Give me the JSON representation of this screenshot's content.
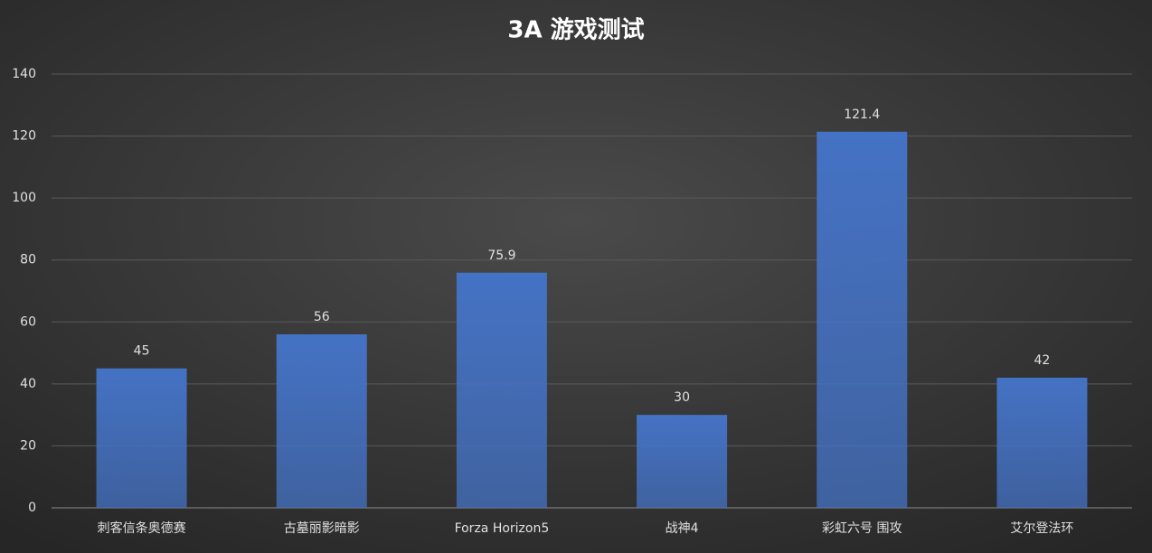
{
  "chart_data": {
    "type": "bar",
    "title": "3A 游戏测试",
    "categories": [
      "刺客信条奥德赛",
      "古墓丽影暗影",
      "Forza Horizon5",
      "战神4",
      "彩虹六号 围攻",
      "艾尔登法环"
    ],
    "values": [
      45,
      56,
      75.9,
      30,
      121.4,
      42
    ],
    "color": "#4472c4",
    "ylim": [
      0,
      140
    ],
    "yticks": [
      0,
      20,
      40,
      60,
      80,
      100,
      120,
      140
    ],
    "grid": true
  }
}
